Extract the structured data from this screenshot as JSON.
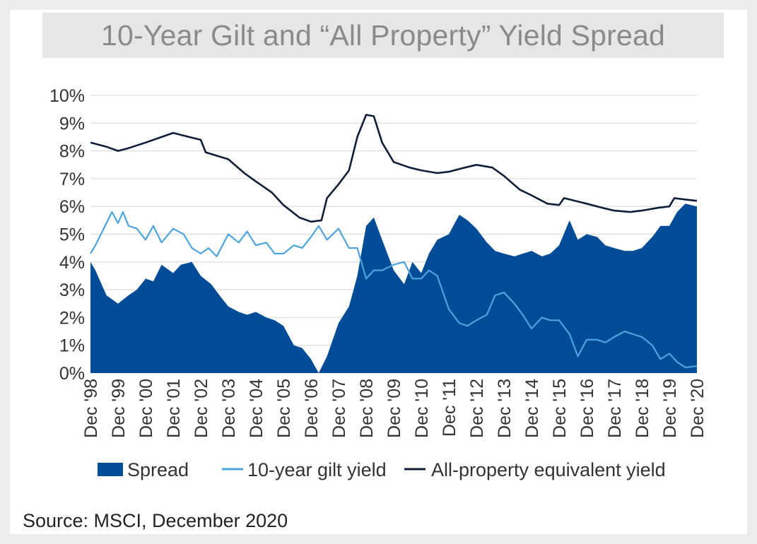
{
  "title": "10-Year Gilt and “All Property” Yield Spread",
  "source": "Source: MSCI, December 2020",
  "colors": {
    "spread": "#004c97",
    "gilt": "#4da3e0",
    "property": "#0f1e36",
    "grid": "#d6d6d6",
    "title_bg": "#e6e6e6",
    "title_text": "#8a8a8a"
  },
  "chart_data": {
    "type": "area",
    "title": "10-Year Gilt and “All Property” Yield Spread",
    "xlabel": "",
    "ylabel": "",
    "ylim": [
      0,
      10
    ],
    "y_ticks": [
      "0%",
      "1%",
      "2%",
      "3%",
      "4%",
      "5%",
      "6%",
      "7%",
      "8%",
      "9%",
      "10%"
    ],
    "x_ticks": [
      "Dec '98",
      "Dec '99",
      "Dec '00",
      "Dec '01",
      "Dec '02",
      "Dec '03",
      "Dec '04",
      "Dec '05",
      "Dec '06",
      "Dec '07",
      "Dec '08",
      "Dec '09",
      "Dec '10",
      "Dec '11",
      "Dec '12",
      "Dec '13",
      "Dec '14",
      "Dec '15",
      "Dec '16",
      "Dec '17",
      "Dec '18",
      "Dec '19",
      "Dec '20"
    ],
    "legend": [
      "Spread",
      "10-year gilt yield",
      "All-property equivalent yield"
    ],
    "legend_position": "bottom",
    "x_start": 1998.92,
    "x_end": 2020.92,
    "series": [
      {
        "name": "All-property equivalent yield",
        "kind": "line",
        "points": [
          [
            1998.92,
            8.3
          ],
          [
            1999.5,
            8.15
          ],
          [
            1999.92,
            8.0
          ],
          [
            2000.3,
            8.1
          ],
          [
            2000.92,
            8.3
          ],
          [
            2001.5,
            8.5
          ],
          [
            2001.92,
            8.65
          ],
          [
            2002.5,
            8.5
          ],
          [
            2002.92,
            8.4
          ],
          [
            2003.1,
            7.95
          ],
          [
            2003.92,
            7.7
          ],
          [
            2004.5,
            7.2
          ],
          [
            2004.92,
            6.9
          ],
          [
            2005.5,
            6.5
          ],
          [
            2005.92,
            6.05
          ],
          [
            2006.5,
            5.6
          ],
          [
            2006.92,
            5.45
          ],
          [
            2007.3,
            5.5
          ],
          [
            2007.5,
            6.3
          ],
          [
            2007.92,
            6.8
          ],
          [
            2008.3,
            7.3
          ],
          [
            2008.6,
            8.5
          ],
          [
            2008.92,
            9.3
          ],
          [
            2009.2,
            9.25
          ],
          [
            2009.5,
            8.3
          ],
          [
            2009.92,
            7.6
          ],
          [
            2010.5,
            7.4
          ],
          [
            2010.92,
            7.3
          ],
          [
            2011.5,
            7.2
          ],
          [
            2011.92,
            7.25
          ],
          [
            2012.5,
            7.4
          ],
          [
            2012.92,
            7.5
          ],
          [
            2013.5,
            7.4
          ],
          [
            2013.92,
            7.1
          ],
          [
            2014.5,
            6.6
          ],
          [
            2014.92,
            6.4
          ],
          [
            2015.5,
            6.1
          ],
          [
            2015.92,
            6.05
          ],
          [
            2016.1,
            6.3
          ],
          [
            2016.5,
            6.2
          ],
          [
            2016.92,
            6.1
          ],
          [
            2017.5,
            5.95
          ],
          [
            2017.92,
            5.85
          ],
          [
            2018.5,
            5.8
          ],
          [
            2018.92,
            5.85
          ],
          [
            2019.5,
            5.95
          ],
          [
            2019.92,
            6.0
          ],
          [
            2020.1,
            6.3
          ],
          [
            2020.5,
            6.25
          ],
          [
            2020.92,
            6.2
          ]
        ]
      },
      {
        "name": "10-year gilt yield",
        "kind": "line",
        "points": [
          [
            1998.92,
            4.3
          ],
          [
            1999.1,
            4.6
          ],
          [
            1999.5,
            5.4
          ],
          [
            1999.7,
            5.8
          ],
          [
            1999.92,
            5.4
          ],
          [
            2000.1,
            5.8
          ],
          [
            2000.3,
            5.3
          ],
          [
            2000.6,
            5.2
          ],
          [
            2000.92,
            4.8
          ],
          [
            2001.2,
            5.3
          ],
          [
            2001.5,
            4.7
          ],
          [
            2001.92,
            5.2
          ],
          [
            2002.3,
            5.0
          ],
          [
            2002.6,
            4.5
          ],
          [
            2002.92,
            4.3
          ],
          [
            2003.2,
            4.5
          ],
          [
            2003.5,
            4.2
          ],
          [
            2003.92,
            5.0
          ],
          [
            2004.3,
            4.7
          ],
          [
            2004.6,
            5.1
          ],
          [
            2004.92,
            4.6
          ],
          [
            2005.3,
            4.7
          ],
          [
            2005.6,
            4.3
          ],
          [
            2005.92,
            4.3
          ],
          [
            2006.3,
            4.6
          ],
          [
            2006.6,
            4.5
          ],
          [
            2006.92,
            4.9
          ],
          [
            2007.2,
            5.3
          ],
          [
            2007.5,
            4.8
          ],
          [
            2007.92,
            5.2
          ],
          [
            2008.3,
            4.5
          ],
          [
            2008.6,
            4.5
          ],
          [
            2008.92,
            3.4
          ],
          [
            2009.2,
            3.7
          ],
          [
            2009.5,
            3.7
          ],
          [
            2009.92,
            3.9
          ],
          [
            2010.3,
            4.0
          ],
          [
            2010.6,
            3.4
          ],
          [
            2010.92,
            3.4
          ],
          [
            2011.2,
            3.7
          ],
          [
            2011.5,
            3.5
          ],
          [
            2011.92,
            2.3
          ],
          [
            2012.3,
            1.8
          ],
          [
            2012.6,
            1.7
          ],
          [
            2012.92,
            1.9
          ],
          [
            2013.3,
            2.1
          ],
          [
            2013.6,
            2.8
          ],
          [
            2013.92,
            2.9
          ],
          [
            2014.3,
            2.5
          ],
          [
            2014.6,
            2.1
          ],
          [
            2014.92,
            1.6
          ],
          [
            2015.3,
            2.0
          ],
          [
            2015.6,
            1.9
          ],
          [
            2015.92,
            1.9
          ],
          [
            2016.3,
            1.4
          ],
          [
            2016.6,
            0.6
          ],
          [
            2016.92,
            1.2
          ],
          [
            2017.3,
            1.2
          ],
          [
            2017.6,
            1.1
          ],
          [
            2017.92,
            1.3
          ],
          [
            2018.3,
            1.5
          ],
          [
            2018.6,
            1.4
          ],
          [
            2018.92,
            1.3
          ],
          [
            2019.3,
            1.0
          ],
          [
            2019.6,
            0.5
          ],
          [
            2019.92,
            0.7
          ],
          [
            2020.2,
            0.4
          ],
          [
            2020.5,
            0.2
          ],
          [
            2020.92,
            0.25
          ]
        ]
      },
      {
        "name": "Spread",
        "kind": "area",
        "points": [
          [
            1998.92,
            4.0
          ],
          [
            1999.1,
            3.7
          ],
          [
            1999.5,
            2.8
          ],
          [
            1999.92,
            2.5
          ],
          [
            2000.3,
            2.8
          ],
          [
            2000.6,
            3.0
          ],
          [
            2000.92,
            3.4
          ],
          [
            2001.2,
            3.3
          ],
          [
            2001.5,
            3.9
          ],
          [
            2001.92,
            3.6
          ],
          [
            2002.2,
            3.9
          ],
          [
            2002.6,
            4.0
          ],
          [
            2002.92,
            3.5
          ],
          [
            2003.3,
            3.2
          ],
          [
            2003.6,
            2.8
          ],
          [
            2003.92,
            2.4
          ],
          [
            2004.3,
            2.2
          ],
          [
            2004.6,
            2.1
          ],
          [
            2004.92,
            2.2
          ],
          [
            2005.3,
            2.0
          ],
          [
            2005.6,
            1.9
          ],
          [
            2005.92,
            1.7
          ],
          [
            2006.3,
            1.0
          ],
          [
            2006.6,
            0.9
          ],
          [
            2006.92,
            0.5
          ],
          [
            2007.2,
            0.0
          ],
          [
            2007.5,
            0.6
          ],
          [
            2007.92,
            1.8
          ],
          [
            2008.3,
            2.4
          ],
          [
            2008.6,
            3.5
          ],
          [
            2008.92,
            5.3
          ],
          [
            2009.2,
            5.6
          ],
          [
            2009.5,
            4.8
          ],
          [
            2009.92,
            3.7
          ],
          [
            2010.3,
            3.2
          ],
          [
            2010.6,
            4.0
          ],
          [
            2010.92,
            3.6
          ],
          [
            2011.2,
            4.3
          ],
          [
            2011.5,
            4.8
          ],
          [
            2011.92,
            5.0
          ],
          [
            2012.3,
            5.7
          ],
          [
            2012.6,
            5.5
          ],
          [
            2012.92,
            5.2
          ],
          [
            2013.3,
            4.7
          ],
          [
            2013.6,
            4.4
          ],
          [
            2013.92,
            4.3
          ],
          [
            2014.3,
            4.2
          ],
          [
            2014.6,
            4.3
          ],
          [
            2014.92,
            4.4
          ],
          [
            2015.3,
            4.2
          ],
          [
            2015.6,
            4.3
          ],
          [
            2015.92,
            4.6
          ],
          [
            2016.3,
            5.5
          ],
          [
            2016.6,
            4.8
          ],
          [
            2016.92,
            5.0
          ],
          [
            2017.3,
            4.9
          ],
          [
            2017.6,
            4.6
          ],
          [
            2017.92,
            4.5
          ],
          [
            2018.3,
            4.4
          ],
          [
            2018.6,
            4.4
          ],
          [
            2018.92,
            4.5
          ],
          [
            2019.3,
            4.9
          ],
          [
            2019.6,
            5.3
          ],
          [
            2019.92,
            5.3
          ],
          [
            2020.2,
            5.8
          ],
          [
            2020.5,
            6.1
          ],
          [
            2020.92,
            6.0
          ]
        ]
      }
    ]
  }
}
